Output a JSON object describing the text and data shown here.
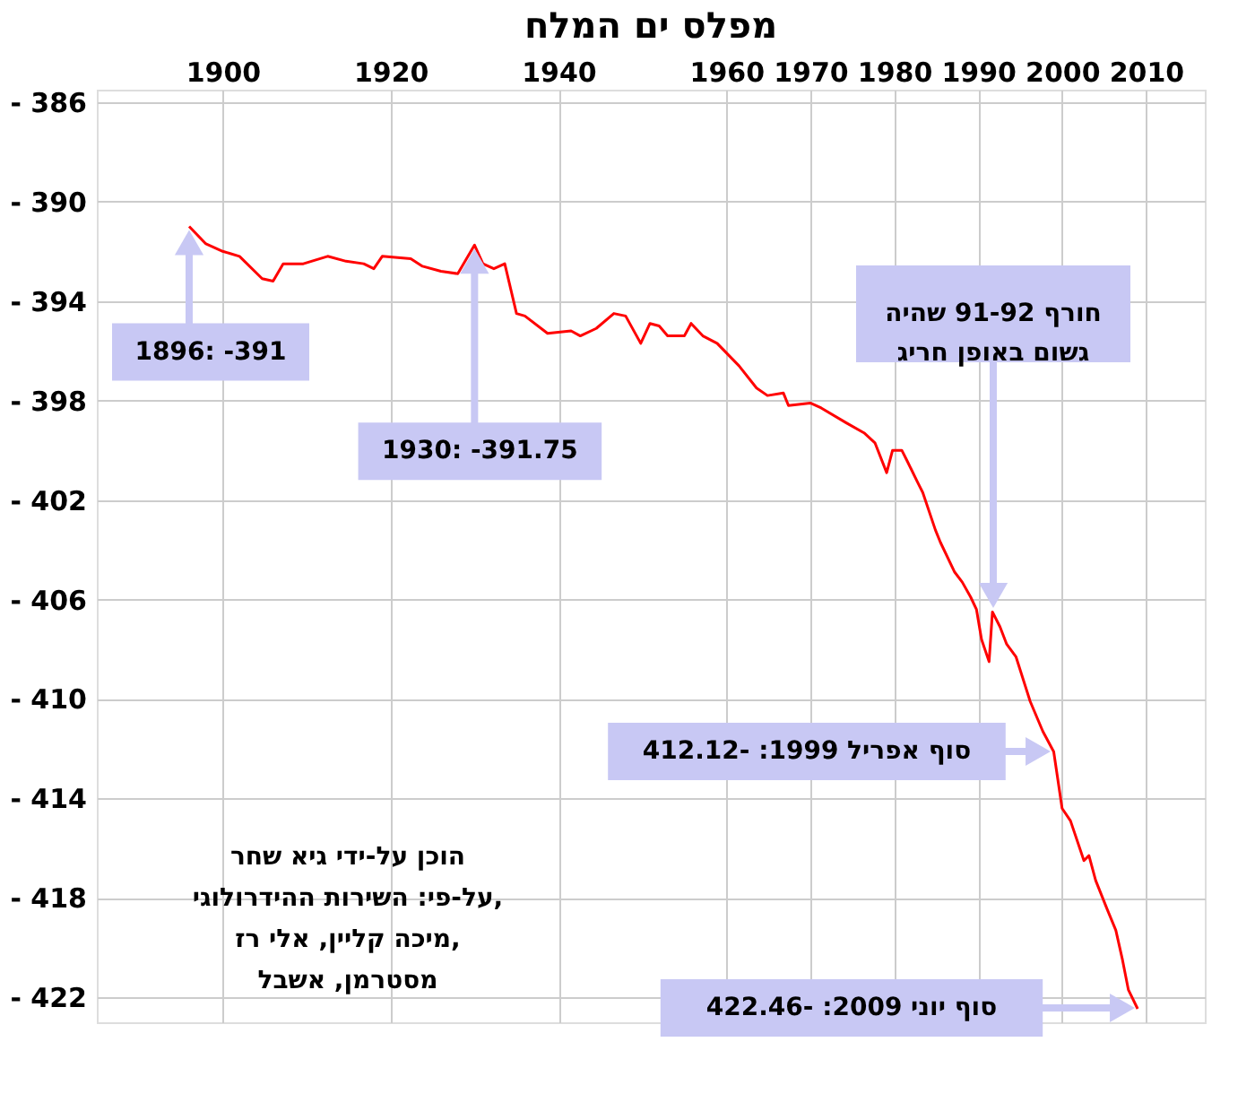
{
  "chart_data": {
    "type": "line",
    "title": "מפלס ים המלח",
    "x": [
      1896,
      1898,
      1900,
      1902,
      1904.7,
      1906,
      1907.2,
      1909.6,
      1912.5,
      1914.7,
      1916.8,
      1918,
      1919,
      1922.4,
      1923.8,
      1926,
      1928,
      1930,
      1931,
      1932.3,
      1933.6,
      1935,
      1936,
      1938.7,
      1941.5,
      1942.6,
      1944.5,
      1946.6,
      1948,
      1949.8,
      1950.9,
      1952,
      1953,
      1955,
      1955.8,
      1957.2,
      1958.9,
      1961.5,
      1963.6,
      1964.9,
      1966.8,
      1967.4,
      1970,
      1971.3,
      1974.3,
      1976.4,
      1977.7,
      1979.1,
      1979.8,
      1980.9,
      1981.5,
      1982.8,
      1983.4,
      1984.9,
      1985.5,
      1987.2,
      1988.1,
      1989.1,
      1989.8,
      1990.4,
      1991.3,
      1991.7,
      1992.6,
      1993.4,
      1994.5,
      1996.2,
      1997.7,
      1999,
      2000,
      2001,
      2002.6,
      2003.2,
      2004,
      2005.3,
      2006.4,
      2007.2,
      2007.9,
      2009
    ],
    "series": [
      {
        "color": "#ff0000",
        "values": [
          -391,
          -391.7,
          -392.0,
          -392.2,
          -393.1,
          -393.2,
          -392.5,
          -392.5,
          -392.2,
          -392.4,
          -392.5,
          -392.7,
          -392.2,
          -392.3,
          -392.6,
          -392.8,
          -392.9,
          -391.75,
          -392.5,
          -392.7,
          -392.5,
          -394.5,
          -394.6,
          -395.3,
          -395.2,
          -395.4,
          -395.1,
          -394.5,
          -394.6,
          -395.7,
          -394.9,
          -395.0,
          -395.4,
          -395.4,
          -394.9,
          -395.4,
          -395.7,
          -396.6,
          -397.5,
          -397.8,
          -397.7,
          -398.2,
          -398.1,
          -398.3,
          -398.9,
          -399.3,
          -399.7,
          -400.9,
          -400.0,
          -400.0,
          -400.4,
          -401.3,
          -401.7,
          -403.2,
          -403.7,
          -404.9,
          -405.3,
          -405.9,
          -406.4,
          -407.6,
          -408.5,
          -406.5,
          -407.1,
          -407.8,
          -408.3,
          -410.1,
          -411.3,
          -412.12,
          -414.4,
          -414.9,
          -416.5,
          -416.3,
          -417.3,
          -418.4,
          -419.3,
          -420.5,
          -421.7,
          -422.46
        ]
      }
    ],
    "xlim": [
      1885,
      2017
    ],
    "xticks": [
      1900,
      1920,
      1940,
      1960,
      1970,
      1980,
      1990,
      2000,
      2010
    ],
    "ylim": [
      -423,
      -385.5
    ],
    "yticks": [
      {
        "value": -386,
        "label": "- 386"
      },
      {
        "value": -390,
        "label": "- 390"
      },
      {
        "value": -394,
        "label": "- 394"
      },
      {
        "value": -398,
        "label": "- 398"
      },
      {
        "value": -402,
        "label": "- 402"
      },
      {
        "value": -406,
        "label": "- 406"
      },
      {
        "value": -410,
        "label": "- 410"
      },
      {
        "value": -414,
        "label": "- 414"
      },
      {
        "value": -418,
        "label": "- 418"
      },
      {
        "value": -422,
        "label": "- 422"
      }
    ],
    "grid": true,
    "legend": false,
    "marker": "none",
    "line_style": "solid",
    "annotations": [
      {
        "text": "1896: -391",
        "x": 1896,
        "y": -391
      },
      {
        "text": "1930: -391.75",
        "x": 1930,
        "y": -391.75
      },
      "חורף 91-92 שהיה גשום באופן חריג",
      "סוף אפריל 1999: -412.12",
      "סוף יוני 2009: -422.46",
      "הוכן על-ידי  גיא שחר",
      "על-פי: השירות ההידרולוגי,",
      "מיכה קליין, אלי רז,",
      "מסטרמן, אשבל"
    ]
  }
}
